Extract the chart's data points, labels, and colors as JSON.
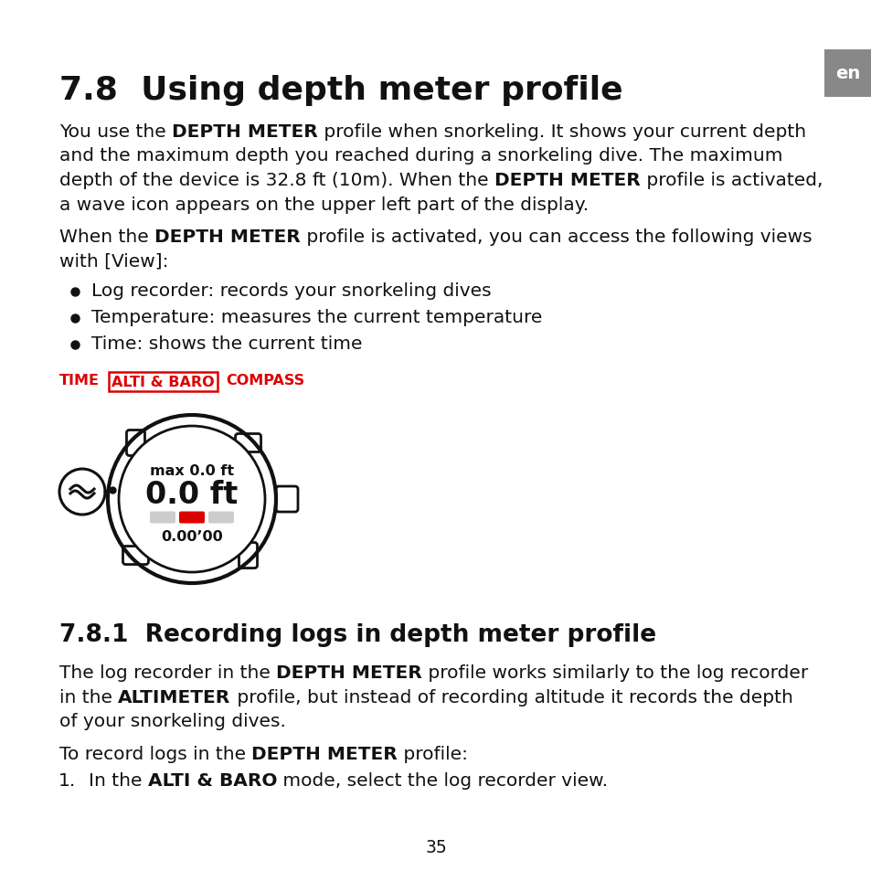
{
  "title": "7.8  Using depth meter profile",
  "subtitle_381": "7.8.1  Recording logs in depth meter profile",
  "en_label": "en",
  "para1_lines": [
    [
      [
        "You use the ",
        "normal"
      ],
      [
        "DEPTH METER",
        "bold"
      ],
      [
        " profile when snorkeling. It shows your current depth",
        "normal"
      ]
    ],
    [
      [
        "and the maximum depth you reached during a snorkeling dive. The maximum",
        "normal"
      ]
    ],
    [
      [
        "depth of the device is 32.8 ft (10m). When the ",
        "normal"
      ],
      [
        "DEPTH METER",
        "bold"
      ],
      [
        " profile is activated,",
        "normal"
      ]
    ],
    [
      [
        "a wave icon appears on the upper left part of the display.",
        "normal"
      ]
    ]
  ],
  "para2_lines": [
    [
      [
        "When the ",
        "normal"
      ],
      [
        "DEPTH METER",
        "bold"
      ],
      [
        " profile is activated, you can access the following views",
        "normal"
      ]
    ],
    [
      [
        "with [View]:",
        "normal"
      ]
    ]
  ],
  "bullets": [
    "Log recorder: records your snorkeling dives",
    "Temperature: measures the current temperature",
    "Time: shows the current time"
  ],
  "nav_time": "TIME",
  "nav_altibaro": "ALTI & BARO",
  "nav_compass": "COMPASS",
  "watch_max": "max 0.0 ft",
  "watch_main": "0.0 ft",
  "watch_time": "0.00’00",
  "para381_lines": [
    [
      [
        "The log recorder in the ",
        "normal"
      ],
      [
        "DEPTH METER",
        "bold"
      ],
      [
        " profile works similarly to the log recorder",
        "normal"
      ]
    ],
    [
      [
        "in the ",
        "normal"
      ],
      [
        "ALTIMETER",
        "bold"
      ],
      [
        " profile, but instead of recording altitude it records the depth",
        "normal"
      ]
    ],
    [
      [
        "of your snorkeling dives.",
        "normal"
      ]
    ]
  ],
  "para381b_lines": [
    [
      [
        "To record logs in the ",
        "normal"
      ],
      [
        "DEPTH METER",
        "bold"
      ],
      [
        " profile:",
        "normal"
      ]
    ]
  ],
  "numbered_lines": [
    [
      [
        "In the ",
        "normal"
      ],
      [
        "ALTI & BARO",
        "bold"
      ],
      [
        " mode, select the log recorder view.",
        "normal"
      ]
    ]
  ],
  "page_number": "35",
  "bg_color": "#ffffff",
  "text_color": "#111111",
  "red_color": "#dd0000",
  "gray_color": "#999999",
  "light_gray": "#cccccc",
  "en_bg_color": "#888888",
  "en_text_color": "#ffffff"
}
